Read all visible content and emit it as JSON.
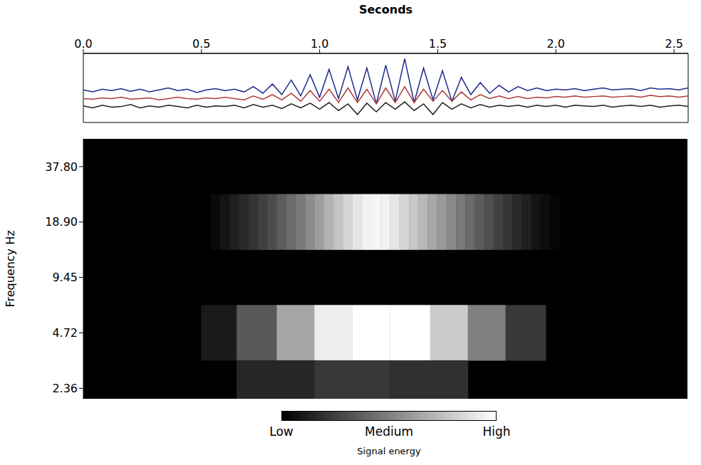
{
  "chart_data": [
    {
      "type": "line",
      "x_label": "Seconds",
      "tick_labels": "x",
      "xlim": [
        0,
        2.56
      ],
      "xticks": [
        {
          "value": 0,
          "label": "0.0"
        },
        0.5,
        {
          "value": 1,
          "label": "1.0"
        },
        1.5,
        {
          "value": 2,
          "label": "2.0"
        },
        2.5
      ],
      "ylim": [
        -1.2,
        4.0
      ],
      "x": [
        0,
        0.04,
        0.08,
        0.12,
        0.16,
        0.2,
        0.24,
        0.28,
        0.32,
        0.36,
        0.4,
        0.44,
        0.48,
        0.52,
        0.56,
        0.6,
        0.64,
        0.68,
        0.72,
        0.76,
        0.8,
        0.84,
        0.88,
        0.92,
        0.96,
        1,
        1.04,
        1.08,
        1.12,
        1.16,
        1.2,
        1.24,
        1.28,
        1.32,
        1.36,
        1.4,
        1.44,
        1.48,
        1.52,
        1.56,
        1.6,
        1.64,
        1.68,
        1.72,
        1.76,
        1.8,
        1.84,
        1.88,
        1.92,
        1.96,
        2,
        2.04,
        2.08,
        2.12,
        2.16,
        2.2,
        2.24,
        2.28,
        2.32,
        2.36,
        2.4,
        2.44,
        2.48,
        2.52,
        2.56
      ],
      "series": [
        {
          "color": "#1f2a8a",
          "values": [
            1.25,
            1.1,
            1.3,
            1.2,
            1.35,
            1.15,
            1.3,
            1.1,
            1.25,
            1.4,
            1.2,
            1.3,
            1.05,
            1.25,
            1.35,
            1.2,
            1.3,
            1.1,
            1.5,
            1.0,
            1.7,
            0.9,
            2.0,
            0.8,
            2.4,
            0.7,
            2.8,
            0.6,
            3.0,
            0.5,
            2.9,
            0.2,
            3.1,
            0.4,
            3.6,
            0.3,
            2.9,
            0.5,
            2.7,
            0.4,
            2.2,
            0.9,
            1.8,
            1.0,
            1.6,
            1.1,
            1.5,
            1.2,
            1.4,
            1.2,
            1.3,
            1.25,
            1.35,
            1.2,
            1.3,
            1.4,
            1.25,
            1.3,
            1.35,
            1.2,
            1.4,
            1.3,
            1.35,
            1.25,
            1.4
          ]
        },
        {
          "color": "#b03a3a",
          "values": [
            0.6,
            0.55,
            0.65,
            0.6,
            0.7,
            0.55,
            0.6,
            0.65,
            0.5,
            0.6,
            0.7,
            0.6,
            0.55,
            0.65,
            0.6,
            0.7,
            0.6,
            0.5,
            0.8,
            0.55,
            0.9,
            0.5,
            1.0,
            0.4,
            1.2,
            0.4,
            1.3,
            0.3,
            1.4,
            0.3,
            1.3,
            0.2,
            1.4,
            0.3,
            1.5,
            0.3,
            1.3,
            0.4,
            1.2,
            0.4,
            1.1,
            0.5,
            0.9,
            0.6,
            0.8,
            0.6,
            0.75,
            0.6,
            0.7,
            0.65,
            0.75,
            0.7,
            0.8,
            0.7,
            0.75,
            0.8,
            0.7,
            0.75,
            0.8,
            0.7,
            0.85,
            0.75,
            0.8,
            0.7,
            0.8
          ]
        },
        {
          "color": "#222222",
          "values": [
            0.05,
            -0.1,
            0.1,
            -0.05,
            0.0,
            0.15,
            -0.1,
            0.05,
            -0.05,
            0.1,
            0.0,
            -0.1,
            0.1,
            -0.05,
            0.05,
            0.0,
            0.1,
            -0.1,
            0.15,
            -0.05,
            0.1,
            -0.15,
            0.2,
            -0.1,
            0.25,
            -0.2,
            0.3,
            -0.3,
            0.2,
            -0.6,
            0.25,
            -0.4,
            0.3,
            -0.2,
            0.35,
            -0.3,
            0.2,
            -0.6,
            0.3,
            -0.2,
            0.2,
            -0.1,
            0.15,
            -0.05,
            0.1,
            0.0,
            0.1,
            -0.05,
            0.1,
            0.0,
            0.1,
            -0.05,
            0.1,
            0.05,
            0.0,
            0.1,
            -0.05,
            0.05,
            0.1,
            0.0,
            0.1,
            -0.05,
            0.05,
            0.1,
            0.0
          ]
        }
      ]
    },
    {
      "type": "heatmap",
      "y_label": "Frequency Hz",
      "tick_labels": "y",
      "log": "y",
      "xlim": [
        0,
        2.56
      ],
      "ylim": [
        2.07,
        53.46
      ],
      "yticks": [
        2.36,
        4.72,
        9.45,
        {
          "value": 18.9,
          "label": "18.90"
        },
        {
          "value": 37.8,
          "label": "37.80"
        }
      ],
      "bands": [
        {
          "f_lo": 13.36,
          "f_hi": 26.73,
          "t_edges": [
            0.54,
            0.58,
            0.62,
            0.66,
            0.7,
            0.74,
            0.78,
            0.82,
            0.86,
            0.9,
            0.94,
            0.98,
            1.02,
            1.06,
            1.1,
            1.14,
            1.18,
            1.22,
            1.26,
            1.3,
            1.34,
            1.38,
            1.42,
            1.46,
            1.5,
            1.54,
            1.58,
            1.62,
            1.66,
            1.7,
            1.74,
            1.78,
            1.82,
            1.86,
            1.9,
            1.94,
            1.98,
            2.02
          ],
          "energy": [
            0.04,
            0.08,
            0.12,
            0.16,
            0.2,
            0.25,
            0.3,
            0.36,
            0.42,
            0.48,
            0.55,
            0.62,
            0.7,
            0.77,
            0.84,
            0.9,
            0.95,
            0.97,
            0.95,
            0.9,
            0.84,
            0.78,
            0.72,
            0.66,
            0.6,
            0.54,
            0.48,
            0.42,
            0.36,
            0.31,
            0.26,
            0.21,
            0.16,
            0.12,
            0.08,
            0.05,
            0.02
          ]
        },
        {
          "f_lo": 3.34,
          "f_hi": 6.68,
          "t_edges": [
            0.5,
            0.65,
            0.82,
            0.98,
            1.14,
            1.3,
            1.47,
            1.63,
            1.79,
            1.96
          ],
          "energy": [
            0.1,
            0.35,
            0.65,
            0.93,
            1,
            1,
            0.8,
            0.5,
            0.22
          ]
        },
        {
          "f_lo": 1.67,
          "f_hi": 3.34,
          "t_edges": [
            0.65,
            0.98,
            1.3,
            1.63
          ],
          "energy": [
            0.15,
            0.22,
            0.19
          ]
        }
      ],
      "colorbar": {
        "range": [
          0,
          1
        ],
        "ticks": [
          {
            "value": 0,
            "label": "Low"
          },
          {
            "value": 0.5,
            "label": "Medium"
          },
          {
            "value": 1,
            "label": "High"
          }
        ],
        "label": "Signal energy"
      }
    }
  ]
}
